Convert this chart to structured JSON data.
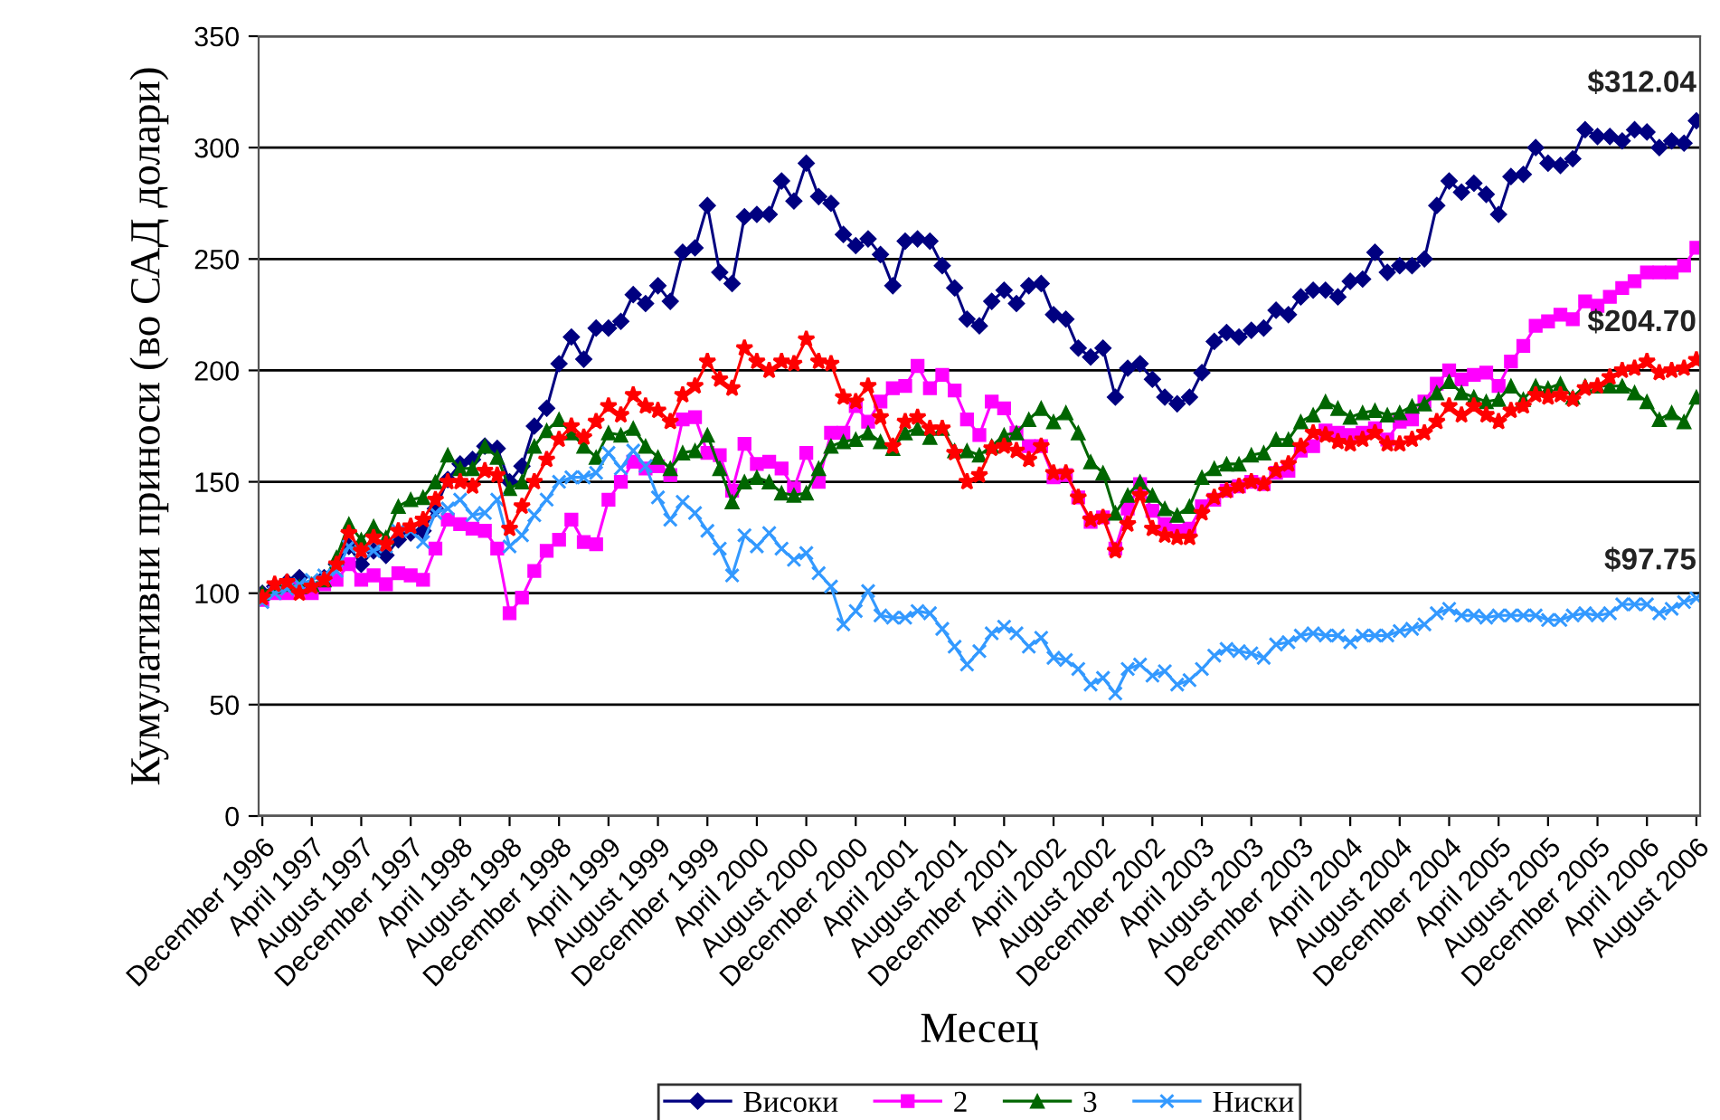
{
  "chart_data": {
    "type": "line",
    "ylabel": "Кумулативни приноси (во САД долари)",
    "xlabel": "Месец",
    "categories": [
      "December 1996",
      null,
      null,
      null,
      "April 1997",
      null,
      null,
      null,
      "August 1997",
      null,
      null,
      null,
      "December 1997",
      null,
      null,
      null,
      "April 1998",
      null,
      null,
      null,
      "August 1998",
      null,
      null,
      null,
      "December 1998",
      null,
      null,
      null,
      "April 1999",
      null,
      null,
      null,
      "August 1999",
      null,
      null,
      null,
      "December 1999",
      null,
      null,
      null,
      "April 2000",
      null,
      null,
      null,
      "August 2000",
      null,
      null,
      null,
      "December 2000",
      null,
      null,
      null,
      "April 2001",
      null,
      null,
      null,
      "August 2001",
      null,
      null,
      null,
      "December 2001",
      null,
      null,
      null,
      "April 2002",
      null,
      null,
      null,
      "August 2002",
      null,
      null,
      null,
      "December 2002",
      null,
      null,
      null,
      "April 2003",
      null,
      null,
      null,
      "August 2003",
      null,
      null,
      null,
      "December 2003",
      null,
      null,
      null,
      "April 2004",
      null,
      null,
      null,
      "August 2004",
      null,
      null,
      null,
      "December 2004",
      null,
      null,
      null,
      "April 2005",
      null,
      null,
      null,
      "August 2005",
      null,
      null,
      null,
      "December 2005",
      null,
      null,
      null,
      "April 2006",
      null,
      null,
      null,
      "August 2006"
    ],
    "series": [
      {
        "name": "Високи",
        "color": "#000080",
        "marker": "diamond",
        "values": [
          100,
          103,
          105,
          107,
          102,
          107,
          113,
          121,
          113,
          119,
          117,
          124,
          127,
          128,
          138,
          151,
          158,
          160,
          166,
          165,
          150,
          157,
          175,
          183,
          203,
          215,
          205,
          219,
          219,
          222,
          234,
          230,
          238,
          231,
          253,
          255,
          274,
          244,
          239,
          269,
          270,
          270,
          285,
          276,
          293,
          278,
          275,
          261,
          256,
          259,
          252,
          238,
          258,
          259,
          258,
          247,
          237,
          223,
          220,
          231,
          236,
          230,
          238,
          239,
          225,
          223,
          210,
          206,
          210,
          188,
          201,
          203,
          196,
          188,
          185,
          188,
          199,
          213,
          217,
          215,
          218,
          219,
          227,
          225,
          233,
          236,
          236,
          233,
          240,
          241,
          253,
          244,
          247,
          247,
          250,
          274,
          285,
          280,
          284,
          279,
          270,
          287,
          288,
          300,
          293,
          292,
          295,
          308,
          305,
          305,
          303,
          308,
          307,
          300,
          303,
          302,
          312.04
        ]
      },
      {
        "name": "2",
        "color": "#ff00ff",
        "marker": "square",
        "values": [
          97,
          100,
          100,
          102,
          100,
          104,
          106,
          113,
          106,
          108,
          104,
          109,
          108,
          106,
          120,
          133,
          131,
          129,
          128,
          120,
          91,
          98,
          110,
          119,
          124,
          133,
          123,
          122,
          142,
          150,
          159,
          156,
          157,
          153,
          178,
          179,
          163,
          162,
          146,
          167,
          158,
          159,
          156,
          147,
          163,
          150,
          172,
          172,
          184,
          177,
          186,
          192,
          193,
          202,
          192,
          198,
          191,
          178,
          171,
          186,
          183,
          172,
          166,
          166,
          152,
          153,
          143,
          132,
          134,
          120,
          138,
          149,
          137,
          131,
          128,
          129,
          139,
          142,
          146,
          148,
          150,
          149,
          154,
          155,
          164,
          166,
          173,
          172,
          171,
          172,
          174,
          169,
          177,
          178,
          186,
          194,
          200,
          196,
          198,
          199,
          193,
          204,
          211,
          220,
          222,
          225,
          223,
          231,
          229,
          233,
          237,
          240,
          244,
          244,
          244,
          247,
          255
        ]
      },
      {
        "name": "3",
        "color": "#006600",
        "marker": "triangle",
        "values": [
          100,
          103,
          104,
          103,
          104,
          106,
          116,
          131,
          124,
          130,
          125,
          139,
          142,
          143,
          150,
          162,
          156,
          156,
          166,
          161,
          147,
          150,
          166,
          173,
          178,
          172,
          166,
          161,
          172,
          171,
          174,
          166,
          161,
          156,
          163,
          164,
          171,
          156,
          141,
          150,
          152,
          150,
          145,
          144,
          145,
          156,
          166,
          168,
          169,
          172,
          168,
          165,
          172,
          174,
          170,
          174,
          164,
          164,
          162,
          166,
          171,
          172,
          178,
          183,
          177,
          181,
          172,
          159,
          154,
          136,
          144,
          150,
          144,
          138,
          135,
          139,
          152,
          156,
          158,
          158,
          162,
          163,
          169,
          169,
          177,
          180,
          186,
          183,
          179,
          181,
          182,
          180,
          181,
          184,
          185,
          190,
          195,
          190,
          188,
          186,
          187,
          193,
          187,
          193,
          192,
          194,
          188,
          193,
          193,
          193,
          193,
          190,
          186,
          178,
          181,
          177,
          188
        ]
      },
      {
        "name": "Ниски",
        "color": "#3399ff",
        "marker": "cross",
        "values": [
          96,
          100,
          102,
          104,
          106,
          108,
          110,
          121,
          119,
          119,
          121,
          128,
          128,
          123,
          136,
          138,
          142,
          135,
          136,
          142,
          121,
          126,
          135,
          142,
          150,
          152,
          152,
          154,
          163,
          156,
          164,
          157,
          143,
          133,
          141,
          136,
          128,
          120,
          108,
          126,
          121,
          127,
          120,
          115,
          118,
          109,
          103,
          86,
          92,
          101,
          90,
          89,
          89,
          92,
          91,
          84,
          76,
          68,
          74,
          82,
          85,
          82,
          76,
          80,
          71,
          70,
          66,
          59,
          62,
          55,
          66,
          68,
          63,
          65,
          59,
          61,
          66,
          72,
          75,
          74,
          73,
          71,
          77,
          78,
          81,
          82,
          81,
          81,
          78,
          81,
          81,
          81,
          83,
          84,
          86,
          91,
          93,
          90,
          90,
          89,
          90,
          90,
          90,
          90,
          88,
          88,
          90,
          91,
          90,
          91,
          95,
          95,
          95,
          91,
          93,
          96,
          97.75
        ]
      },
      {
        "color": "#ff0000",
        "marker": "star",
        "values": [
          98,
          104,
          105,
          100,
          103,
          106,
          113,
          127,
          119,
          125,
          122,
          128,
          130,
          133,
          142,
          150,
          150,
          148,
          155,
          153,
          129,
          139,
          150,
          160,
          169,
          175,
          170,
          177,
          184,
          180,
          189,
          184,
          182,
          177,
          189,
          193,
          204,
          196,
          192,
          210,
          204,
          200,
          204,
          203,
          214,
          204,
          203,
          188,
          186,
          193,
          179,
          166,
          177,
          179,
          174,
          174,
          163,
          150,
          153,
          165,
          166,
          164,
          160,
          166,
          154,
          154,
          143,
          133,
          134,
          119,
          131,
          144,
          129,
          126,
          125,
          125,
          136,
          143,
          146,
          148,
          150,
          149,
          155,
          158,
          166,
          172,
          171,
          168,
          167,
          169,
          172,
          167,
          167,
          169,
          172,
          177,
          184,
          180,
          184,
          180,
          177,
          182,
          184,
          189,
          188,
          189,
          187,
          192,
          193,
          197,
          200,
          201,
          204,
          199,
          200,
          201,
          204.7
        ]
      }
    ],
    "annotations": [
      {
        "text": "$312.04",
        "y": 312.04
      },
      {
        "text": "$204.70",
        "y": 204.7
      },
      {
        "text": "$97.75",
        "y": 97.75
      }
    ],
    "ylim": [
      0,
      350
    ],
    "yticks": [
      0,
      50,
      100,
      150,
      200,
      250,
      300,
      350
    ],
    "grid": "y",
    "legend": "bottom",
    "line_style": "solid"
  }
}
